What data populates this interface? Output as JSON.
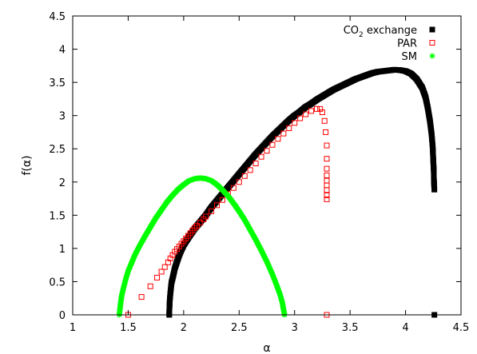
{
  "chart_data": {
    "type": "scatter",
    "xlabel": "α",
    "ylabel": "f(α)",
    "xlim": [
      1,
      4.5
    ],
    "ylim": [
      0,
      4.5
    ],
    "xticks": [
      "1",
      "1.5",
      "2",
      "2.5",
      "3",
      "3.5",
      "4",
      "4.5"
    ],
    "yticks": [
      "0",
      "0.5",
      "1",
      "1.5",
      "2",
      "2.5",
      "3",
      "3.5",
      "4",
      "4.5"
    ],
    "grid": false,
    "legend_position": "top-right",
    "series": [
      {
        "name_main": "CO",
        "name_sub": "2",
        "name_rest": " exchange",
        "marker": "filled-square",
        "color": "#000000",
        "points": [
          [
            1.87,
            0.0
          ],
          [
            1.872,
            0.12
          ],
          [
            1.875,
            0.22
          ],
          [
            1.88,
            0.32
          ],
          [
            1.885,
            0.4
          ],
          [
            1.89,
            0.48
          ],
          [
            1.9,
            0.55
          ],
          [
            1.91,
            0.62
          ],
          [
            1.92,
            0.7
          ],
          [
            1.94,
            0.8
          ],
          [
            1.96,
            0.9
          ],
          [
            1.98,
            0.98
          ],
          [
            2.0,
            1.05
          ],
          [
            2.05,
            1.18
          ],
          [
            2.1,
            1.3
          ],
          [
            2.15,
            1.4
          ],
          [
            2.2,
            1.5
          ],
          [
            2.25,
            1.62
          ],
          [
            2.3,
            1.72
          ],
          [
            2.35,
            1.82
          ],
          [
            2.4,
            1.92
          ],
          [
            2.45,
            2.02
          ],
          [
            2.5,
            2.12
          ],
          [
            2.55,
            2.22
          ],
          [
            2.6,
            2.32
          ],
          [
            2.65,
            2.42
          ],
          [
            2.7,
            2.51
          ],
          [
            2.75,
            2.6
          ],
          [
            2.8,
            2.69
          ],
          [
            2.85,
            2.77
          ],
          [
            2.9,
            2.85
          ],
          [
            2.95,
            2.93
          ],
          [
            3.0,
            3.0
          ],
          [
            3.05,
            3.06
          ],
          [
            3.1,
            3.13
          ],
          [
            3.15,
            3.18
          ],
          [
            3.2,
            3.24
          ],
          [
            3.25,
            3.29
          ],
          [
            3.3,
            3.34
          ],
          [
            3.35,
            3.39
          ],
          [
            3.4,
            3.43
          ],
          [
            3.45,
            3.47
          ],
          [
            3.5,
            3.51
          ],
          [
            3.55,
            3.55
          ],
          [
            3.6,
            3.58
          ],
          [
            3.65,
            3.61
          ],
          [
            3.7,
            3.64
          ],
          [
            3.75,
            3.66
          ],
          [
            3.8,
            3.67
          ],
          [
            3.85,
            3.68
          ],
          [
            3.9,
            3.69
          ],
          [
            3.95,
            3.685
          ],
          [
            4.0,
            3.67
          ],
          [
            4.05,
            3.63
          ],
          [
            4.1,
            3.55
          ],
          [
            4.15,
            3.42
          ],
          [
            4.18,
            3.28
          ],
          [
            4.2,
            3.12
          ],
          [
            4.22,
            2.92
          ],
          [
            4.235,
            2.72
          ],
          [
            4.245,
            2.52
          ],
          [
            4.25,
            2.32
          ],
          [
            4.255,
            2.15
          ],
          [
            4.255,
            2.05
          ],
          [
            4.258,
            1.95
          ],
          [
            4.26,
            1.87
          ],
          [
            4.26,
            0.0
          ]
        ]
      },
      {
        "name_main": "PAR",
        "marker": "open-square",
        "color": "#ff0000",
        "points": [
          [
            1.5,
            0.0
          ],
          [
            1.62,
            0.27
          ],
          [
            1.7,
            0.43
          ],
          [
            1.76,
            0.56
          ],
          [
            1.8,
            0.65
          ],
          [
            1.83,
            0.72
          ],
          [
            1.86,
            0.79
          ],
          [
            1.88,
            0.85
          ],
          [
            1.9,
            0.9
          ],
          [
            1.92,
            0.95
          ],
          [
            1.94,
            0.99
          ],
          [
            1.96,
            1.03
          ],
          [
            1.98,
            1.07
          ],
          [
            2.0,
            1.11
          ],
          [
            2.02,
            1.15
          ],
          [
            2.04,
            1.19
          ],
          [
            2.06,
            1.23
          ],
          [
            2.08,
            1.27
          ],
          [
            2.1,
            1.31
          ],
          [
            2.12,
            1.34
          ],
          [
            2.15,
            1.39
          ],
          [
            2.18,
            1.44
          ],
          [
            2.2,
            1.48
          ],
          [
            2.25,
            1.56
          ],
          [
            2.3,
            1.65
          ],
          [
            2.35,
            1.73
          ],
          [
            2.4,
            1.82
          ],
          [
            2.45,
            1.91
          ],
          [
            2.5,
            2.0
          ],
          [
            2.55,
            2.09
          ],
          [
            2.6,
            2.18
          ],
          [
            2.65,
            2.28
          ],
          [
            2.7,
            2.38
          ],
          [
            2.75,
            2.47
          ],
          [
            2.8,
            2.56
          ],
          [
            2.85,
            2.65
          ],
          [
            2.9,
            2.73
          ],
          [
            2.95,
            2.81
          ],
          [
            3.0,
            2.89
          ],
          [
            3.05,
            2.96
          ],
          [
            3.1,
            3.02
          ],
          [
            3.15,
            3.07
          ],
          [
            3.2,
            3.1
          ],
          [
            3.23,
            3.1
          ],
          [
            3.25,
            3.05
          ],
          [
            3.27,
            2.92
          ],
          [
            3.28,
            2.75
          ],
          [
            3.29,
            2.55
          ],
          [
            3.29,
            2.35
          ],
          [
            3.29,
            2.2
          ],
          [
            3.29,
            2.1
          ],
          [
            3.29,
            2.02
          ],
          [
            3.29,
            1.95
          ],
          [
            3.29,
            1.88
          ],
          [
            3.29,
            1.8
          ],
          [
            3.29,
            1.74
          ],
          [
            3.29,
            0.0
          ]
        ]
      },
      {
        "name_main": "SM",
        "marker": "asterisk",
        "color": "#00ff00",
        "points": [
          [
            1.42,
            0.0
          ],
          [
            1.43,
            0.15
          ],
          [
            1.44,
            0.28
          ],
          [
            1.46,
            0.42
          ],
          [
            1.48,
            0.55
          ],
          [
            1.5,
            0.66
          ],
          [
            1.53,
            0.78
          ],
          [
            1.56,
            0.9
          ],
          [
            1.6,
            1.03
          ],
          [
            1.65,
            1.18
          ],
          [
            1.7,
            1.32
          ],
          [
            1.75,
            1.46
          ],
          [
            1.8,
            1.58
          ],
          [
            1.85,
            1.7
          ],
          [
            1.9,
            1.8
          ],
          [
            1.95,
            1.89
          ],
          [
            2.0,
            1.96
          ],
          [
            2.05,
            2.02
          ],
          [
            2.1,
            2.05
          ],
          [
            2.15,
            2.06
          ],
          [
            2.2,
            2.05
          ],
          [
            2.25,
            2.02
          ],
          [
            2.3,
            1.96
          ],
          [
            2.35,
            1.88
          ],
          [
            2.4,
            1.79
          ],
          [
            2.45,
            1.68
          ],
          [
            2.5,
            1.56
          ],
          [
            2.55,
            1.43
          ],
          [
            2.6,
            1.28
          ],
          [
            2.65,
            1.13
          ],
          [
            2.7,
            0.97
          ],
          [
            2.75,
            0.8
          ],
          [
            2.8,
            0.61
          ],
          [
            2.84,
            0.44
          ],
          [
            2.87,
            0.3
          ],
          [
            2.89,
            0.18
          ],
          [
            2.9,
            0.08
          ],
          [
            2.91,
            0.0
          ]
        ]
      }
    ]
  }
}
